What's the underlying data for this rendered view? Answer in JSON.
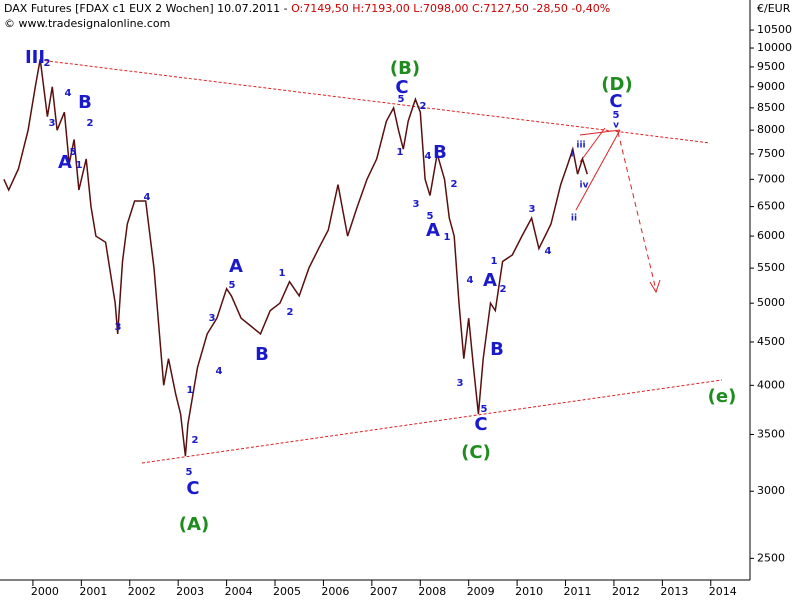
{
  "chart_data": {
    "type": "line",
    "title": "DAX Futures [FDAX c1 EUX  2 Wochen] 10.07.2011 -",
    "quote": "O:7149,50 H:7193,00 L:7098,00 C:7127,50 -28,50 -0,40%",
    "subtitle": "© www.tradesignalonline.com",
    "y_label": "€/EUR",
    "log_scale": true,
    "grid": false,
    "color": "#5a1010",
    "x": [
      1999.4,
      1999.5,
      1999.7,
      1999.9,
      2000.05,
      2000.15,
      2000.3,
      2000.4,
      2000.5,
      2000.65,
      2000.75,
      2000.85,
      2000.95,
      2001.1,
      2001.2,
      2001.3,
      2001.5,
      2001.7,
      2001.75,
      2001.85,
      2001.95,
      2002.1,
      2002.33,
      2002.5,
      2002.7,
      2002.8,
      2002.95,
      2003.05,
      2003.15,
      2003.2,
      2003.4,
      2003.6,
      2003.8,
      2004.0,
      2004.1,
      2004.3,
      2004.5,
      2004.7,
      2004.9,
      2005.1,
      2005.3,
      2005.5,
      2005.7,
      2005.9,
      2006.1,
      2006.3,
      2006.5,
      2006.7,
      2006.9,
      2007.1,
      2007.3,
      2007.45,
      2007.55,
      2007.65,
      2007.75,
      2007.9,
      2008.0,
      2008.1,
      2008.2,
      2008.35,
      2008.5,
      2008.6,
      2008.7,
      2008.8,
      2008.9,
      2009.0,
      2009.1,
      2009.2,
      2009.3,
      2009.45,
      2009.55,
      2009.7,
      2009.9,
      2010.1,
      2010.3,
      2010.45,
      2010.7,
      2010.9,
      2011.05,
      2011.15,
      2011.25,
      2011.35,
      2011.45
    ],
    "values": [
      7000,
      6800,
      7200,
      8000,
      9000,
      9700,
      8300,
      9000,
      8000,
      8400,
      7300,
      7800,
      6800,
      7400,
      6500,
      6000,
      5900,
      5000,
      4600,
      5600,
      6200,
      6600,
      6600,
      5500,
      4000,
      4300,
      3900,
      3700,
      3300,
      3600,
      4200,
      4600,
      4800,
      5200,
      5100,
      4800,
      4700,
      4600,
      4900,
      5000,
      5300,
      5100,
      5500,
      5800,
      6100,
      6900,
      6000,
      6500,
      7000,
      7400,
      8200,
      8500,
      8000,
      7600,
      8200,
      8700,
      8400,
      7000,
      6700,
      7500,
      7000,
      6300,
      6000,
      5000,
      4300,
      4800,
      4200,
      3700,
      4300,
      5000,
      4900,
      5600,
      5700,
      6000,
      6300,
      5800,
      6200,
      6900,
      7300,
      7600,
      7100,
      7400,
      7100
    ],
    "xlim": [
      1999.32,
      2014.81
    ],
    "xticks": [
      2000,
      2001,
      2002,
      2003,
      2004,
      2005,
      2006,
      2007,
      2008,
      2009,
      2010,
      2011,
      2012,
      2013,
      2014
    ],
    "ylim": [
      2370,
      10850
    ],
    "yticks": [
      2500,
      3000,
      3500,
      4000,
      4500,
      5000,
      5500,
      6000,
      6500,
      7000,
      7500,
      8000,
      8500,
      9000,
      9500,
      10000,
      10500
    ],
    "annotations": [
      "III",
      "2",
      "3",
      "4",
      "B",
      "2",
      "5",
      "A",
      "1",
      "4",
      "3",
      "1",
      "2",
      "3",
      "4",
      "A",
      "5",
      "1",
      "2",
      "B",
      "5",
      "C",
      "(A)",
      "(B)",
      "C",
      "5",
      "2",
      "1",
      "4",
      "B",
      "2",
      "3",
      "5",
      "A",
      "1",
      "4",
      "A",
      "1",
      "2",
      "B",
      "3",
      "5",
      "C",
      "(C)",
      "3",
      "4",
      "i",
      "iii",
      "iv",
      "ii",
      "v",
      "5",
      "C",
      "(D)",
      "(e)"
    ]
  }
}
